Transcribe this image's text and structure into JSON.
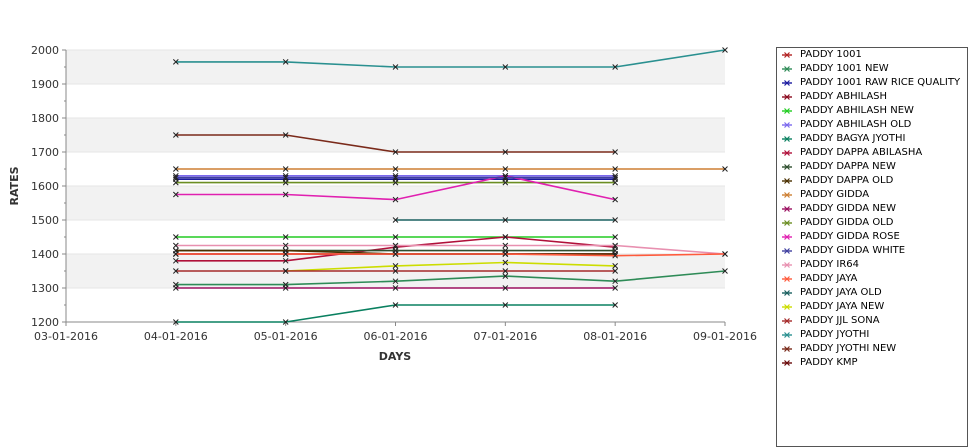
{
  "chart_data": {
    "type": "line",
    "title": "",
    "xlabel": "DAYS",
    "ylabel": "RATES",
    "x": [
      "03-01-2016",
      "04-01-2016",
      "05-01-2016",
      "06-01-2016",
      "07-01-2016",
      "08-01-2016",
      "09-01-2016"
    ],
    "ylim": [
      1200,
      2000
    ],
    "yticks": [
      1200,
      1300,
      1400,
      1500,
      1600,
      1700,
      1800,
      1900,
      2000
    ],
    "grid": "horizontal bands",
    "legend_position": "right",
    "series": [
      {
        "name": "PADDY 1001",
        "color": "#b22222",
        "values": [
          null,
          1400,
          1400,
          1400,
          1400,
          1400,
          null
        ]
      },
      {
        "name": "PADDY 1001 NEW",
        "color": "#2e8b57",
        "values": [
          null,
          1310,
          1310,
          1320,
          1335,
          1320,
          1350
        ]
      },
      {
        "name": "PADDY 1001 RAW RICE QUALITY",
        "color": "#1a1aa0",
        "values": [
          null,
          1620,
          1620,
          1620,
          1620,
          1620,
          null
        ]
      },
      {
        "name": "PADDY ABHILASH",
        "color": "#8b0a1e",
        "values": [
          null,
          1400,
          1400,
          1400,
          1400,
          1400,
          null
        ]
      },
      {
        "name": "PADDY ABHILASH NEW",
        "color": "#22cc22",
        "values": [
          null,
          1450,
          1450,
          1450,
          1450,
          1450,
          null
        ]
      },
      {
        "name": "PADDY ABHILASH OLD",
        "color": "#7b68ee",
        "values": [
          null,
          1630,
          1630,
          1630,
          1630,
          1630,
          null
        ]
      },
      {
        "name": "PADDY BAGYA JYOTHI",
        "color": "#0a8060",
        "values": [
          null,
          1200,
          1200,
          1250,
          1250,
          1250,
          null
        ]
      },
      {
        "name": "PADDY DAPPA ABILASHA",
        "color": "#b0103a",
        "values": [
          null,
          1380,
          1380,
          1420,
          1450,
          1420,
          null
        ]
      },
      {
        "name": "PADDY DAPPA NEW",
        "color": "#2f4f2f",
        "values": [
          null,
          1410,
          1410,
          1410,
          1410,
          1410,
          null
        ]
      },
      {
        "name": "PADDY DAPPA OLD",
        "color": "#4a3000",
        "values": [
          null,
          1410,
          1410,
          1400,
          1400,
          1400,
          null
        ]
      },
      {
        "name": "PADDY GIDDA",
        "color": "#cd7f32",
        "values": [
          null,
          1650,
          1650,
          1650,
          1650,
          1650,
          1650
        ]
      },
      {
        "name": "PADDY GIDDA NEW",
        "color": "#9b1060",
        "values": [
          null,
          1300,
          1300,
          1300,
          1300,
          1300,
          null
        ]
      },
      {
        "name": "PADDY GIDDA OLD",
        "color": "#6b8e23",
        "values": [
          null,
          1610,
          1610,
          1610,
          1610,
          1610,
          null
        ]
      },
      {
        "name": "PADDY GIDDA ROSE",
        "color": "#e020b0",
        "values": [
          null,
          1575,
          1575,
          1560,
          1630,
          1560,
          null
        ]
      },
      {
        "name": "PADDY GIDDA WHITE",
        "color": "#4040a0",
        "values": [
          null,
          1625,
          1625,
          1625,
          1625,
          1625,
          null
        ]
      },
      {
        "name": "PADDY IR64",
        "color": "#e890b0",
        "values": [
          null,
          1425,
          1425,
          1425,
          1425,
          1425,
          1400
        ]
      },
      {
        "name": "PADDY JAYA",
        "color": "#ff5a3c",
        "values": [
          null,
          1400,
          1400,
          1400,
          1400,
          1395,
          1400
        ]
      },
      {
        "name": "PADDY JAYA  OLD",
        "color": "#1a6060",
        "values": [
          null,
          null,
          null,
          1500,
          1500,
          1500,
          null
        ]
      },
      {
        "name": "PADDY JAYA NEW",
        "color": "#ccdd00",
        "values": [
          null,
          null,
          1350,
          1365,
          1375,
          1365,
          null
        ]
      },
      {
        "name": "PADDY JJL SONA",
        "color": "#a52a2a",
        "values": [
          null,
          1350,
          1350,
          1350,
          1350,
          1350,
          null
        ]
      },
      {
        "name": "PADDY JYOTHI",
        "color": "#2a9090",
        "values": [
          null,
          1965,
          1965,
          1950,
          1950,
          1950,
          2000
        ]
      },
      {
        "name": "PADDY JYOTHI NEW",
        "color": "#7a2a1a",
        "values": [
          null,
          1750,
          1750,
          1700,
          1700,
          1700,
          null
        ]
      },
      {
        "name": "PADDY KMP",
        "color": "#6a0a0a",
        "values": [
          null,
          null,
          null,
          null,
          null,
          null,
          null
        ]
      }
    ]
  }
}
